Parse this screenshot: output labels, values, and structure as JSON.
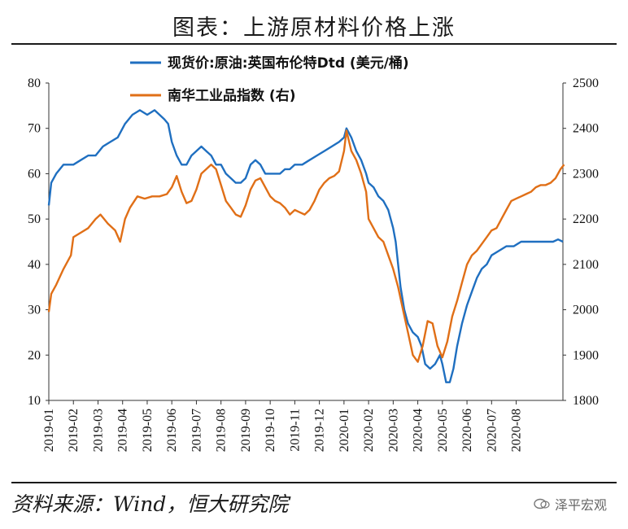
{
  "title": "图表：上游原材料价格上涨",
  "source": "资料来源：Wind，恒大研究院",
  "watermark": "泽平宏观",
  "chart_data": {
    "type": "line",
    "x_tick_labels": [
      "2019-01",
      "2019-02",
      "2019-03",
      "2019-04",
      "2019-05",
      "2019-06",
      "2019-07",
      "2019-08",
      "2019-09",
      "2019-10",
      "2019-11",
      "2019-12",
      "2020-01",
      "2020-02",
      "2020-03",
      "2020-04",
      "2020-05",
      "2020-06",
      "2020-07",
      "2020-08"
    ],
    "y_left": {
      "range": [
        10,
        80
      ],
      "ticks": [
        10,
        20,
        30,
        40,
        50,
        60,
        70,
        80
      ]
    },
    "y_right": {
      "range": [
        1800,
        2500
      ],
      "ticks": [
        1800,
        1900,
        2000,
        2100,
        2200,
        2300,
        2400,
        2500
      ]
    },
    "grid": false,
    "legend_position": "top-left",
    "series": [
      {
        "name": "现货价:原油:英国布伦特Dtd (美元/桶)",
        "axis": "left",
        "color": "#1f6fc0",
        "points": [
          [
            0,
            53
          ],
          [
            0.1,
            58
          ],
          [
            0.3,
            60
          ],
          [
            0.6,
            62
          ],
          [
            1.0,
            62
          ],
          [
            1.3,
            63
          ],
          [
            1.6,
            64
          ],
          [
            1.9,
            64
          ],
          [
            2.2,
            66
          ],
          [
            2.5,
            67
          ],
          [
            2.8,
            68
          ],
          [
            3.1,
            71
          ],
          [
            3.4,
            73
          ],
          [
            3.7,
            74
          ],
          [
            4.0,
            73
          ],
          [
            4.3,
            74
          ],
          [
            4.5,
            73
          ],
          [
            4.7,
            72
          ],
          [
            4.85,
            71
          ],
          [
            5.0,
            67
          ],
          [
            5.2,
            64
          ],
          [
            5.4,
            62
          ],
          [
            5.6,
            62
          ],
          [
            5.8,
            64
          ],
          [
            6.0,
            65
          ],
          [
            6.2,
            66
          ],
          [
            6.4,
            65
          ],
          [
            6.6,
            64
          ],
          [
            6.8,
            62
          ],
          [
            7.0,
            62
          ],
          [
            7.2,
            60
          ],
          [
            7.4,
            59
          ],
          [
            7.6,
            58
          ],
          [
            7.8,
            58
          ],
          [
            8.0,
            59
          ],
          [
            8.2,
            62
          ],
          [
            8.4,
            63
          ],
          [
            8.6,
            62
          ],
          [
            8.8,
            60
          ],
          [
            9.0,
            60
          ],
          [
            9.2,
            60
          ],
          [
            9.4,
            60
          ],
          [
            9.6,
            61
          ],
          [
            9.8,
            61
          ],
          [
            10.0,
            62
          ],
          [
            10.3,
            62
          ],
          [
            10.6,
            63
          ],
          [
            10.9,
            64
          ],
          [
            11.2,
            65
          ],
          [
            11.5,
            66
          ],
          [
            11.8,
            67
          ],
          [
            12.0,
            68
          ],
          [
            12.1,
            70
          ],
          [
            12.3,
            68
          ],
          [
            12.5,
            65
          ],
          [
            12.7,
            63
          ],
          [
            12.9,
            60
          ],
          [
            13.0,
            58
          ],
          [
            13.2,
            57
          ],
          [
            13.4,
            55
          ],
          [
            13.6,
            54
          ],
          [
            13.8,
            52
          ],
          [
            14.0,
            48
          ],
          [
            14.1,
            45
          ],
          [
            14.2,
            40
          ],
          [
            14.3,
            35
          ],
          [
            14.45,
            30
          ],
          [
            14.6,
            27
          ],
          [
            14.8,
            25
          ],
          [
            15.0,
            24
          ],
          [
            15.15,
            22
          ],
          [
            15.3,
            18
          ],
          [
            15.5,
            17
          ],
          [
            15.7,
            18
          ],
          [
            15.9,
            20
          ],
          [
            16.0,
            18
          ],
          [
            16.15,
            14
          ],
          [
            16.3,
            14
          ],
          [
            16.45,
            17
          ],
          [
            16.6,
            22
          ],
          [
            16.8,
            27
          ],
          [
            17.0,
            31
          ],
          [
            17.2,
            34
          ],
          [
            17.4,
            37
          ],
          [
            17.6,
            39
          ],
          [
            17.8,
            40
          ],
          [
            18.0,
            42
          ],
          [
            18.3,
            43
          ],
          [
            18.6,
            44
          ],
          [
            18.9,
            44
          ],
          [
            19.2,
            45
          ],
          [
            19.5,
            45
          ],
          [
            19.8,
            45
          ],
          [
            20.0,
            45
          ],
          [
            20.3,
            45
          ],
          [
            20.5,
            45
          ],
          [
            20.7,
            45.5
          ],
          [
            20.9,
            45
          ]
        ]
      },
      {
        "name": "南华工业品指数 (右)",
        "axis": "right",
        "color": "#e06f17",
        "points": [
          [
            0,
            1995
          ],
          [
            0.1,
            2035
          ],
          [
            0.3,
            2055
          ],
          [
            0.6,
            2090
          ],
          [
            0.9,
            2120
          ],
          [
            1.0,
            2160
          ],
          [
            1.3,
            2170
          ],
          [
            1.6,
            2180
          ],
          [
            1.9,
            2200
          ],
          [
            2.1,
            2210
          ],
          [
            2.4,
            2190
          ],
          [
            2.7,
            2175
          ],
          [
            2.9,
            2150
          ],
          [
            3.1,
            2200
          ],
          [
            3.3,
            2225
          ],
          [
            3.6,
            2250
          ],
          [
            3.9,
            2245
          ],
          [
            4.2,
            2250
          ],
          [
            4.5,
            2250
          ],
          [
            4.8,
            2255
          ],
          [
            5.0,
            2270
          ],
          [
            5.2,
            2295
          ],
          [
            5.4,
            2260
          ],
          [
            5.6,
            2235
          ],
          [
            5.8,
            2240
          ],
          [
            6.0,
            2265
          ],
          [
            6.2,
            2300
          ],
          [
            6.4,
            2310
          ],
          [
            6.6,
            2320
          ],
          [
            6.8,
            2310
          ],
          [
            7.0,
            2275
          ],
          [
            7.2,
            2240
          ],
          [
            7.4,
            2225
          ],
          [
            7.6,
            2210
          ],
          [
            7.8,
            2205
          ],
          [
            8.0,
            2230
          ],
          [
            8.2,
            2265
          ],
          [
            8.4,
            2285
          ],
          [
            8.6,
            2290
          ],
          [
            8.8,
            2270
          ],
          [
            9.0,
            2250
          ],
          [
            9.2,
            2240
          ],
          [
            9.4,
            2235
          ],
          [
            9.6,
            2225
          ],
          [
            9.8,
            2210
          ],
          [
            10.0,
            2220
          ],
          [
            10.2,
            2215
          ],
          [
            10.4,
            2210
          ],
          [
            10.6,
            2220
          ],
          [
            10.8,
            2240
          ],
          [
            11.0,
            2265
          ],
          [
            11.2,
            2280
          ],
          [
            11.4,
            2290
          ],
          [
            11.6,
            2295
          ],
          [
            11.8,
            2305
          ],
          [
            12.0,
            2350
          ],
          [
            12.1,
            2395
          ],
          [
            12.3,
            2350
          ],
          [
            12.5,
            2330
          ],
          [
            12.7,
            2300
          ],
          [
            12.9,
            2260
          ],
          [
            13.0,
            2200
          ],
          [
            13.2,
            2180
          ],
          [
            13.4,
            2160
          ],
          [
            13.6,
            2150
          ],
          [
            13.8,
            2120
          ],
          [
            14.0,
            2090
          ],
          [
            14.2,
            2050
          ],
          [
            14.4,
            2000
          ],
          [
            14.6,
            1950
          ],
          [
            14.8,
            1900
          ],
          [
            15.0,
            1885
          ],
          [
            15.2,
            1920
          ],
          [
            15.4,
            1975
          ],
          [
            15.6,
            1970
          ],
          [
            15.8,
            1920
          ],
          [
            16.0,
            1895
          ],
          [
            16.2,
            1930
          ],
          [
            16.4,
            1985
          ],
          [
            16.6,
            2020
          ],
          [
            16.8,
            2060
          ],
          [
            17.0,
            2100
          ],
          [
            17.2,
            2120
          ],
          [
            17.4,
            2130
          ],
          [
            17.6,
            2145
          ],
          [
            17.8,
            2160
          ],
          [
            18.0,
            2175
          ],
          [
            18.2,
            2180
          ],
          [
            18.4,
            2200
          ],
          [
            18.6,
            2220
          ],
          [
            18.8,
            2240
          ],
          [
            19.0,
            2245
          ],
          [
            19.2,
            2250
          ],
          [
            19.4,
            2255
          ],
          [
            19.6,
            2260
          ],
          [
            19.8,
            2270
          ],
          [
            20.0,
            2275
          ],
          [
            20.2,
            2275
          ],
          [
            20.4,
            2280
          ],
          [
            20.6,
            2290
          ],
          [
            20.8,
            2310
          ],
          [
            20.95,
            2320
          ]
        ]
      }
    ]
  }
}
